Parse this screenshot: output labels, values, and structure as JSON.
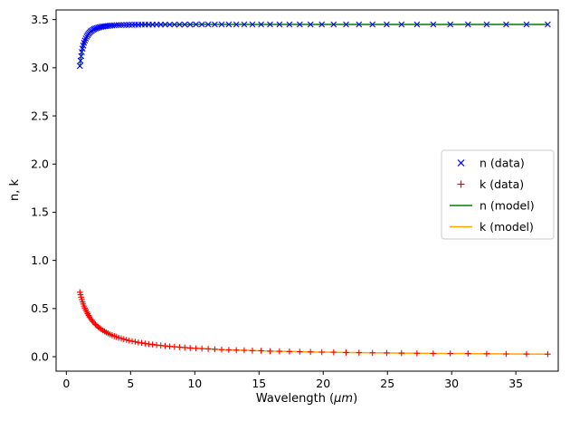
{
  "chart_data": {
    "type": "line",
    "subtype": "line+scatter",
    "title": "",
    "xlabel": "Wavelength (μm)",
    "ylabel": "n, k",
    "xlim": [
      -0.8,
      38.3
    ],
    "ylim": [
      -0.15,
      3.6
    ],
    "xticks": [
      0,
      5,
      10,
      15,
      20,
      25,
      30,
      35
    ],
    "yticks": [
      0.0,
      0.5,
      1.0,
      1.5,
      2.0,
      2.5,
      3.0,
      3.5
    ],
    "grid": false,
    "legend_position": "center right",
    "axis_color": "#000000",
    "legend_border_color": "#cccccc",
    "x": [
      1.05,
      1.099,
      1.149,
      1.203,
      1.258,
      1.317,
      1.377,
      1.441,
      1.508,
      1.578,
      1.651,
      1.727,
      1.807,
      1.891,
      1.978,
      2.07,
      2.166,
      2.266,
      2.371,
      2.481,
      2.595,
      2.716,
      2.841,
      2.973,
      3.11,
      3.254,
      3.405,
      3.563,
      3.728,
      3.9,
      4.081,
      4.27,
      4.468,
      4.674,
      4.891,
      5.117,
      5.354,
      5.602,
      5.861,
      6.132,
      6.416,
      6.713,
      7.024,
      7.349,
      7.69,
      8.046,
      8.418,
      8.808,
      9.216,
      9.642,
      10.089,
      10.556,
      11.044,
      11.556,
      12.091,
      12.65,
      13.236,
      13.849,
      14.49,
      15.161,
      15.863,
      16.597,
      17.366,
      18.17,
      19.011,
      19.891,
      20.812,
      21.776,
      22.784,
      23.838,
      24.942,
      26.097,
      27.305,
      28.569,
      29.892,
      31.276,
      32.724,
      34.239,
      35.824,
      37.482
    ],
    "series": [
      {
        "name": "n (data)",
        "style": "scatter",
        "marker": "x",
        "color": "#0000ff",
        "values": [
          3.018,
          3.073,
          3.121,
          3.163,
          3.199,
          3.231,
          3.259,
          3.283,
          3.304,
          3.323,
          3.339,
          3.353,
          3.365,
          3.376,
          3.385,
          3.394,
          3.401,
          3.407,
          3.412,
          3.417,
          3.421,
          3.425,
          3.428,
          3.431,
          3.433,
          3.435,
          3.437,
          3.439,
          3.44,
          3.442,
          3.443,
          3.444,
          3.444,
          3.445,
          3.446,
          3.446,
          3.447,
          3.447,
          3.448,
          3.448,
          3.448,
          3.448,
          3.449,
          3.449,
          3.449,
          3.449,
          3.449,
          3.449,
          3.449,
          3.449,
          3.45,
          3.45,
          3.45,
          3.45,
          3.45,
          3.45,
          3.45,
          3.45,
          3.45,
          3.45,
          3.45,
          3.45,
          3.45,
          3.45,
          3.45,
          3.45,
          3.45,
          3.45,
          3.45,
          3.45,
          3.45,
          3.45,
          3.45,
          3.45,
          3.45,
          3.45,
          3.45,
          3.45,
          3.45,
          3.45
        ]
      },
      {
        "name": "k (data)",
        "style": "scatter",
        "marker": "+",
        "color": "#ff0000",
        "values": [
          0.67,
          0.643,
          0.618,
          0.593,
          0.569,
          0.547,
          0.525,
          0.504,
          0.484,
          0.464,
          0.446,
          0.428,
          0.411,
          0.395,
          0.379,
          0.364,
          0.349,
          0.335,
          0.322,
          0.309,
          0.297,
          0.285,
          0.273,
          0.263,
          0.252,
          0.242,
          0.232,
          0.223,
          0.214,
          0.206,
          0.197,
          0.19,
          0.182,
          0.175,
          0.168,
          0.161,
          0.155,
          0.148,
          0.143,
          0.137,
          0.131,
          0.126,
          0.121,
          0.116,
          0.112,
          0.107,
          0.103,
          0.099,
          0.095,
          0.091,
          0.087,
          0.084,
          0.081,
          0.077,
          0.074,
          0.071,
          0.068,
          0.066,
          0.063,
          0.061,
          0.058,
          0.056,
          0.054,
          0.052,
          0.049,
          0.047,
          0.046,
          0.044,
          0.042,
          0.04,
          0.039,
          0.037,
          0.036,
          0.034,
          0.033,
          0.032,
          0.03,
          0.029,
          0.028,
          0.027
        ]
      },
      {
        "name": "n (model)",
        "style": "line",
        "color": "#008000",
        "values": [
          3.018,
          3.073,
          3.121,
          3.163,
          3.199,
          3.231,
          3.259,
          3.283,
          3.304,
          3.323,
          3.339,
          3.353,
          3.365,
          3.376,
          3.385,
          3.394,
          3.401,
          3.407,
          3.412,
          3.417,
          3.421,
          3.425,
          3.428,
          3.431,
          3.433,
          3.435,
          3.437,
          3.439,
          3.44,
          3.442,
          3.443,
          3.444,
          3.444,
          3.445,
          3.446,
          3.446,
          3.447,
          3.447,
          3.448,
          3.448,
          3.448,
          3.448,
          3.449,
          3.449,
          3.449,
          3.449,
          3.449,
          3.449,
          3.449,
          3.449,
          3.45,
          3.45,
          3.45,
          3.45,
          3.45,
          3.45,
          3.45,
          3.45,
          3.45,
          3.45,
          3.45,
          3.45,
          3.45,
          3.45,
          3.45,
          3.45,
          3.45,
          3.45,
          3.45,
          3.45,
          3.45,
          3.45,
          3.45,
          3.45,
          3.45,
          3.45,
          3.45,
          3.45,
          3.45,
          3.45
        ]
      },
      {
        "name": "k (model)",
        "style": "line",
        "color": "#ffa500",
        "values": [
          0.67,
          0.643,
          0.618,
          0.593,
          0.569,
          0.547,
          0.525,
          0.504,
          0.484,
          0.464,
          0.446,
          0.428,
          0.411,
          0.395,
          0.379,
          0.364,
          0.349,
          0.335,
          0.322,
          0.309,
          0.297,
          0.285,
          0.273,
          0.263,
          0.252,
          0.242,
          0.232,
          0.223,
          0.214,
          0.206,
          0.197,
          0.19,
          0.182,
          0.175,
          0.168,
          0.161,
          0.155,
          0.148,
          0.143,
          0.137,
          0.131,
          0.126,
          0.121,
          0.116,
          0.112,
          0.107,
          0.103,
          0.099,
          0.095,
          0.091,
          0.087,
          0.084,
          0.081,
          0.077,
          0.074,
          0.071,
          0.068,
          0.066,
          0.063,
          0.061,
          0.058,
          0.056,
          0.054,
          0.052,
          0.049,
          0.047,
          0.046,
          0.044,
          0.042,
          0.04,
          0.039,
          0.037,
          0.036,
          0.034,
          0.033,
          0.032,
          0.03,
          0.029,
          0.028,
          0.027
        ]
      }
    ]
  }
}
